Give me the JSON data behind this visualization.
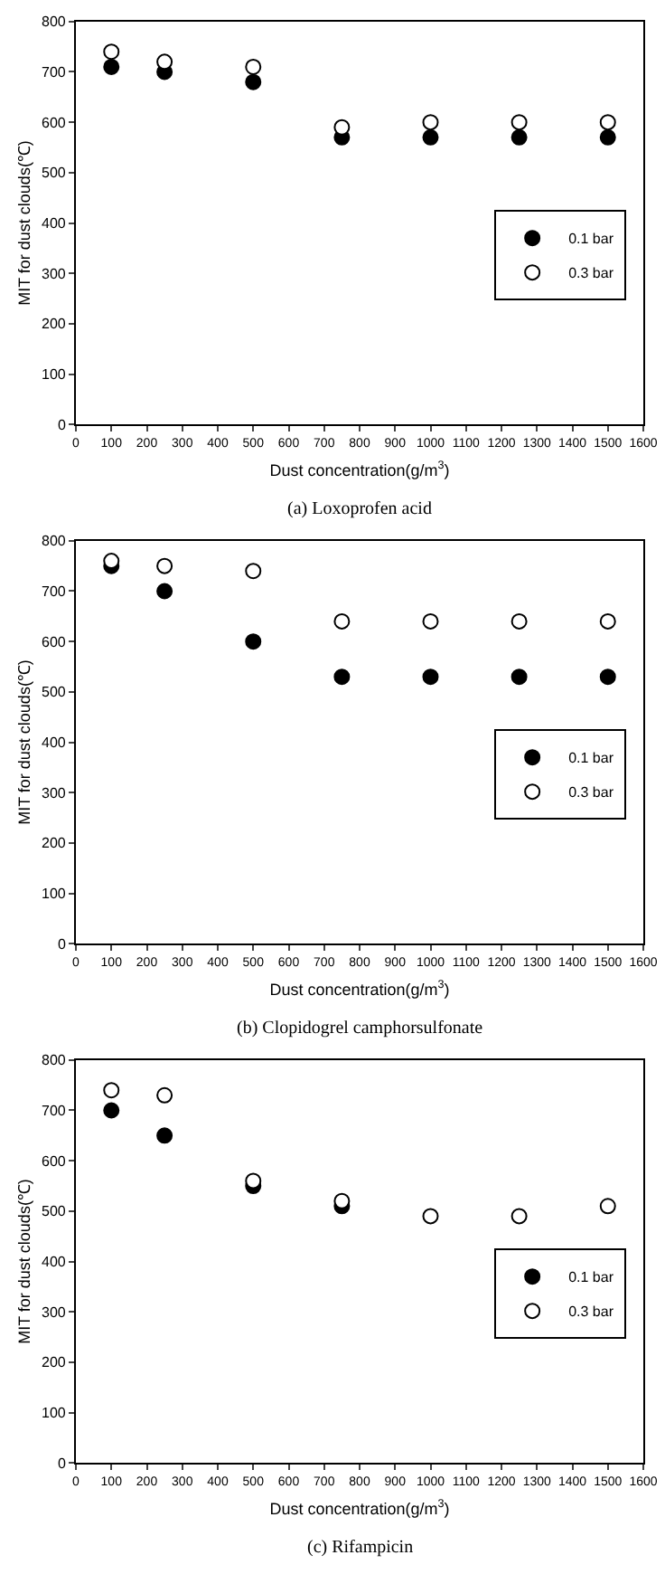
{
  "chart_data": [
    {
      "type": "scatter",
      "title": "(a) Loxoprofen acid",
      "xlabel": "Dust concentration(g/m$^{3}$)",
      "ylabel": "MIT for dust clouds(℃)",
      "x": [
        100,
        250,
        500,
        750,
        1000,
        1250,
        1500
      ],
      "xlim": [
        0,
        1600
      ],
      "xticks": [
        0,
        100,
        200,
        300,
        400,
        500,
        600,
        700,
        800,
        900,
        1000,
        1100,
        1200,
        1300,
        1400,
        1500,
        1600
      ],
      "ylim": [
        0,
        800
      ],
      "yticks": [
        0,
        100,
        200,
        300,
        400,
        500,
        600,
        700,
        800
      ],
      "legend": "center right",
      "marker": "circle",
      "series": [
        {
          "name": "0.1 bar",
          "color": "#000000",
          "values": [
            710,
            700,
            680,
            570,
            570,
            570,
            570
          ]
        },
        {
          "name": "0.3 bar",
          "color": "#ffffff",
          "values": [
            740,
            720,
            710,
            590,
            600,
            600,
            600
          ]
        }
      ]
    },
    {
      "type": "scatter",
      "title": "(b) Clopidogrel camphorsulfonate",
      "xlabel": "Dust concentration(g/m$^{3}$)",
      "ylabel": "MIT for dust clouds(℃)",
      "x": [
        100,
        250,
        500,
        750,
        1000,
        1250,
        1500
      ],
      "xlim": [
        0,
        1600
      ],
      "xticks": [
        0,
        100,
        200,
        300,
        400,
        500,
        600,
        700,
        800,
        900,
        1000,
        1100,
        1200,
        1300,
        1400,
        1500,
        1600
      ],
      "ylim": [
        0,
        800
      ],
      "yticks": [
        0,
        100,
        200,
        300,
        400,
        500,
        600,
        700,
        800
      ],
      "legend": "center right",
      "marker": "circle",
      "series": [
        {
          "name": "0.1 bar",
          "color": "#000000",
          "values": [
            750,
            700,
            600,
            530,
            530,
            530,
            530
          ]
        },
        {
          "name": "0.3 bar",
          "color": "#ffffff",
          "values": [
            760,
            750,
            740,
            640,
            640,
            640,
            640
          ]
        }
      ]
    },
    {
      "type": "scatter",
      "title": "(c) Rifampicin",
      "xlabel": "Dust concentration(g/m$^{3}$)",
      "ylabel": "MIT for dust clouds(℃)",
      "x": [
        100,
        250,
        500,
        750,
        1000,
        1250,
        1500
      ],
      "xlim": [
        0,
        1600
      ],
      "xticks": [
        0,
        100,
        200,
        300,
        400,
        500,
        600,
        700,
        800,
        900,
        1000,
        1100,
        1200,
        1300,
        1400,
        1500,
        1600
      ],
      "ylim": [
        0,
        800
      ],
      "yticks": [
        0,
        100,
        200,
        300,
        400,
        500,
        600,
        700,
        800
      ],
      "legend": "center right",
      "marker": "circle",
      "series": [
        {
          "name": "0.1 bar",
          "color": "#000000",
          "values": [
            700,
            650,
            550,
            510,
            null,
            null,
            null
          ]
        },
        {
          "name": "0.3 bar",
          "color": "#ffffff",
          "values": [
            740,
            730,
            560,
            520,
            490,
            490,
            510
          ]
        }
      ]
    }
  ]
}
